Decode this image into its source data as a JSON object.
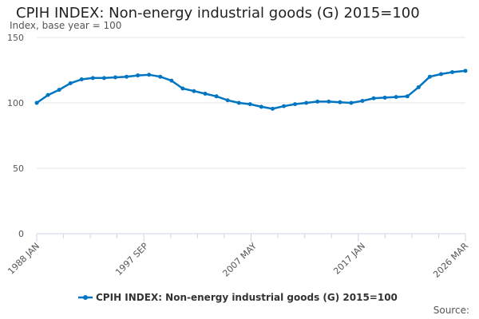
{
  "chart_data": {
    "type": "line",
    "title": "CPIH INDEX: Non-energy industrial goods (G) 2015=100",
    "ylabel": "Index, base year = 100",
    "ylim": [
      0,
      150
    ],
    "yticks": [
      0,
      50,
      100,
      150
    ],
    "xlim": [
      1988.0,
      2026.17
    ],
    "xtick_labels": [
      "1988 JAN",
      "1997 SEP",
      "2007 MAY",
      "2017 JAN",
      "2026 MAR"
    ],
    "xtick_values": [
      1988.0,
      1997.67,
      2007.33,
      2017.0,
      2026.17
    ],
    "grid": true,
    "legend": "bottom",
    "color": "#0075c2",
    "series": [
      {
        "name": "CPIH INDEX: Non-energy industrial goods (G) 2015=100",
        "x": [
          1988,
          1989,
          1990,
          1991,
          1992,
          1993,
          1994,
          1995,
          1996,
          1997,
          1998,
          1999,
          2000,
          2001,
          2002,
          2003,
          2004,
          2005,
          2006,
          2007,
          2008,
          2009,
          2010,
          2011,
          2012,
          2013,
          2014,
          2015,
          2016,
          2017,
          2018,
          2019,
          2020,
          2021,
          2022,
          2023,
          2024,
          2025,
          2026.17
        ],
        "values": [
          100,
          106,
          110,
          115,
          118,
          119,
          119,
          119.5,
          120,
          121,
          121.5,
          120,
          117,
          111,
          109,
          107,
          105,
          102,
          100,
          99,
          97,
          95.5,
          97.5,
          99,
          100,
          101,
          101,
          100.5,
          100,
          101.5,
          103.5,
          104,
          104.5,
          105,
          112,
          120,
          122,
          123.5,
          124.5
        ]
      }
    ]
  },
  "source_label": "Source:"
}
